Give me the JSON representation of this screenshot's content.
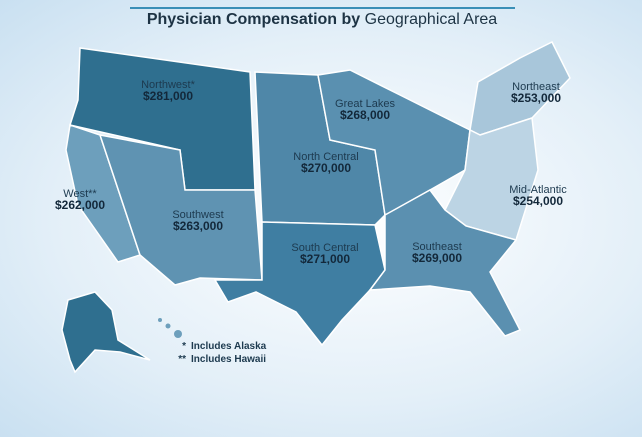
{
  "header": {
    "title_bold": "Physician Compensation by",
    "title_rest": "Geographical Area"
  },
  "regions": [
    {
      "name": "Northwest*",
      "value": "$281,000"
    },
    {
      "name": "West**",
      "value": "$262,000"
    },
    {
      "name": "Southwest",
      "value": "$263,000"
    },
    {
      "name": "North Central",
      "value": "$270,000"
    },
    {
      "name": "Great Lakes",
      "value": "$268,000"
    },
    {
      "name": "Northeast",
      "value": "$253,000"
    },
    {
      "name": "Mid-Atlantic",
      "value": "$254,000"
    },
    {
      "name": "South Central",
      "value": "$271,000"
    },
    {
      "name": "Southeast",
      "value": "$269,000"
    }
  ],
  "notes": [
    {
      "marker": "*",
      "text": "Includes Alaska"
    },
    {
      "marker": "**",
      "text": "Includes Hawaii"
    }
  ]
}
